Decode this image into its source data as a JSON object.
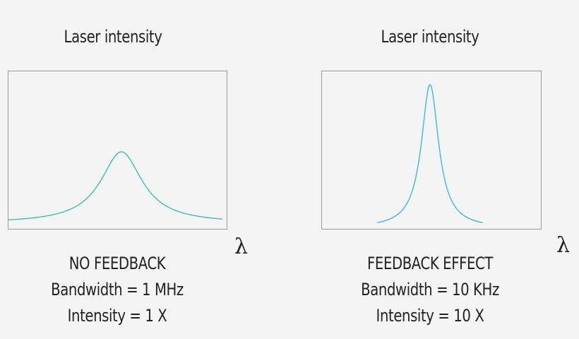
{
  "panels": [
    {
      "title": "Laser intensity",
      "axis_symbol": "λ",
      "caption": {
        "heading": "NO FEEDBACK",
        "bandwidth": "Bandwidth = 1 MHz",
        "intensity": "Intensity = 1 X"
      },
      "curve_color": "#3dbfb0",
      "peak_relative": 0.5,
      "width_relative": "broad"
    },
    {
      "title": "Laser intensity",
      "axis_symbol": "λ",
      "caption": {
        "heading": "FEEDBACK EFFECT",
        "bandwidth": "Bandwidth = 10 KHz",
        "intensity": "Intensity = 10 X"
      },
      "curve_color": "#3ab9de",
      "peak_relative": 1.0,
      "width_relative": "narrow"
    }
  ],
  "colors": {
    "background": "#f4f4f4",
    "frame": "#9a9a9a",
    "text": "#222222"
  }
}
